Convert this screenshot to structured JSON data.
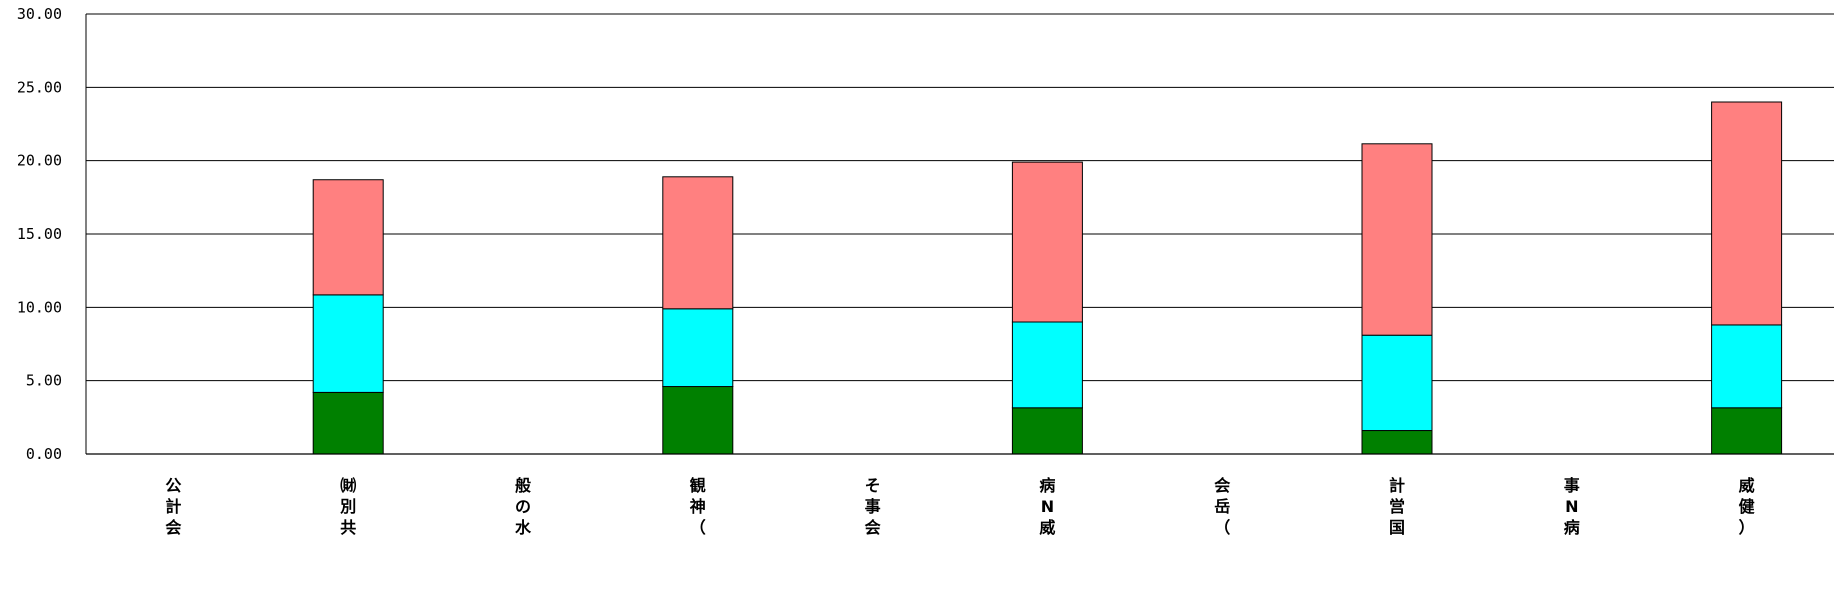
{
  "chart_data": {
    "type": "bar",
    "stacked": true,
    "categories": [
      "公計会",
      "㈶別共",
      "般の水",
      "観神（",
      "そ事会",
      "病N威",
      "会岳（",
      "計営国",
      "事N病",
      "威健）"
    ],
    "series": [
      {
        "color": "#008000",
        "values": [
          0,
          4.2,
          0,
          4.6,
          0,
          3.15,
          0,
          1.6,
          0,
          3.15
        ]
      },
      {
        "color": "#00FFFF",
        "values": [
          0,
          6.65,
          0,
          5.3,
          0,
          5.85,
          0,
          6.5,
          0,
          5.65
        ]
      },
      {
        "color": "#FF8080",
        "values": [
          0,
          7.85,
          0,
          9.0,
          0,
          10.9,
          0,
          13.05,
          0,
          15.2
        ]
      }
    ],
    "yticks": [
      "0.00",
      "5.00",
      "10.00",
      "15.00",
      "20.00",
      "25.00",
      "30.00"
    ],
    "ylim": [
      0,
      30
    ],
    "grid": true,
    "title": "",
    "xlabel": "",
    "ylabel": ""
  }
}
